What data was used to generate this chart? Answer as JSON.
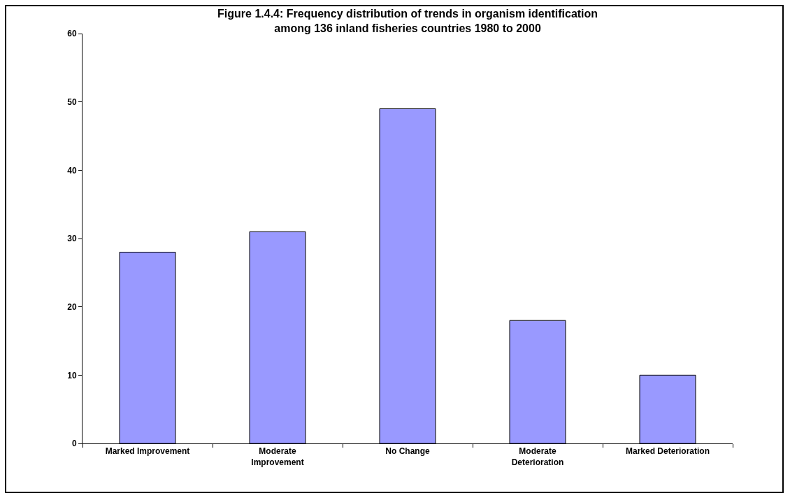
{
  "chart_data": {
    "type": "bar",
    "title": "Figure 1.4.4: Frequency distribution of trends in organism identification\namong 136 inland fisheries countries 1980 to 2000",
    "categories": [
      "Marked Improvement",
      "Moderate\nImprovement",
      "No Change",
      "Moderate\nDeterioration",
      "Marked Deterioration"
    ],
    "values": [
      28,
      31,
      49,
      18,
      10
    ],
    "color": "#9999ff",
    "ylim": [
      0,
      60
    ],
    "yticks": [
      0,
      10,
      20,
      30,
      40,
      50,
      60
    ],
    "grid": false,
    "legend": false
  }
}
